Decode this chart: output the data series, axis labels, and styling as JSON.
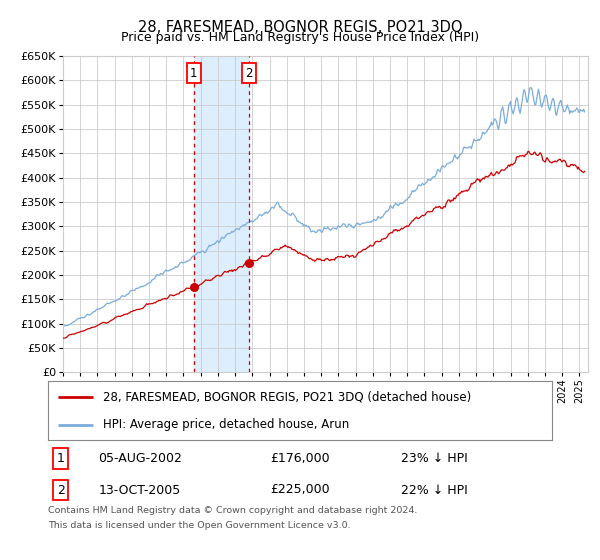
{
  "title": "28, FARESMEAD, BOGNOR REGIS, PO21 3DQ",
  "subtitle": "Price paid vs. HM Land Registry's House Price Index (HPI)",
  "ylim": [
    0,
    650000
  ],
  "xlim_start": 1995.0,
  "xlim_end": 2025.5,
  "yticks": [
    0,
    50000,
    100000,
    150000,
    200000,
    250000,
    300000,
    350000,
    400000,
    450000,
    500000,
    550000,
    600000,
    650000
  ],
  "ytick_labels": [
    "£0",
    "£50K",
    "£100K",
    "£150K",
    "£200K",
    "£250K",
    "£300K",
    "£350K",
    "£400K",
    "£450K",
    "£500K",
    "£550K",
    "£600K",
    "£650K"
  ],
  "sale1_date": 2002.587,
  "sale1_price": 176000,
  "sale1_label": "05-AUG-2002",
  "sale1_pct": "23% ↓ HPI",
  "sale2_date": 2005.787,
  "sale2_price": 225000,
  "sale2_label": "13-OCT-2005",
  "sale2_pct": "22% ↓ HPI",
  "red_line_color": "#cc0000",
  "blue_line_color": "#7aaddd",
  "highlight_color": "#ddeeff",
  "grid_color": "#cccccc",
  "bg_color": "#ffffff",
  "legend1": "28, FARESMEAD, BOGNOR REGIS, PO21 3DQ (detached house)",
  "legend2": "HPI: Average price, detached house, Arun",
  "footnote_line1": "Contains HM Land Registry data © Crown copyright and database right 2024.",
  "footnote_line2": "This data is licensed under the Open Government Licence v3.0."
}
